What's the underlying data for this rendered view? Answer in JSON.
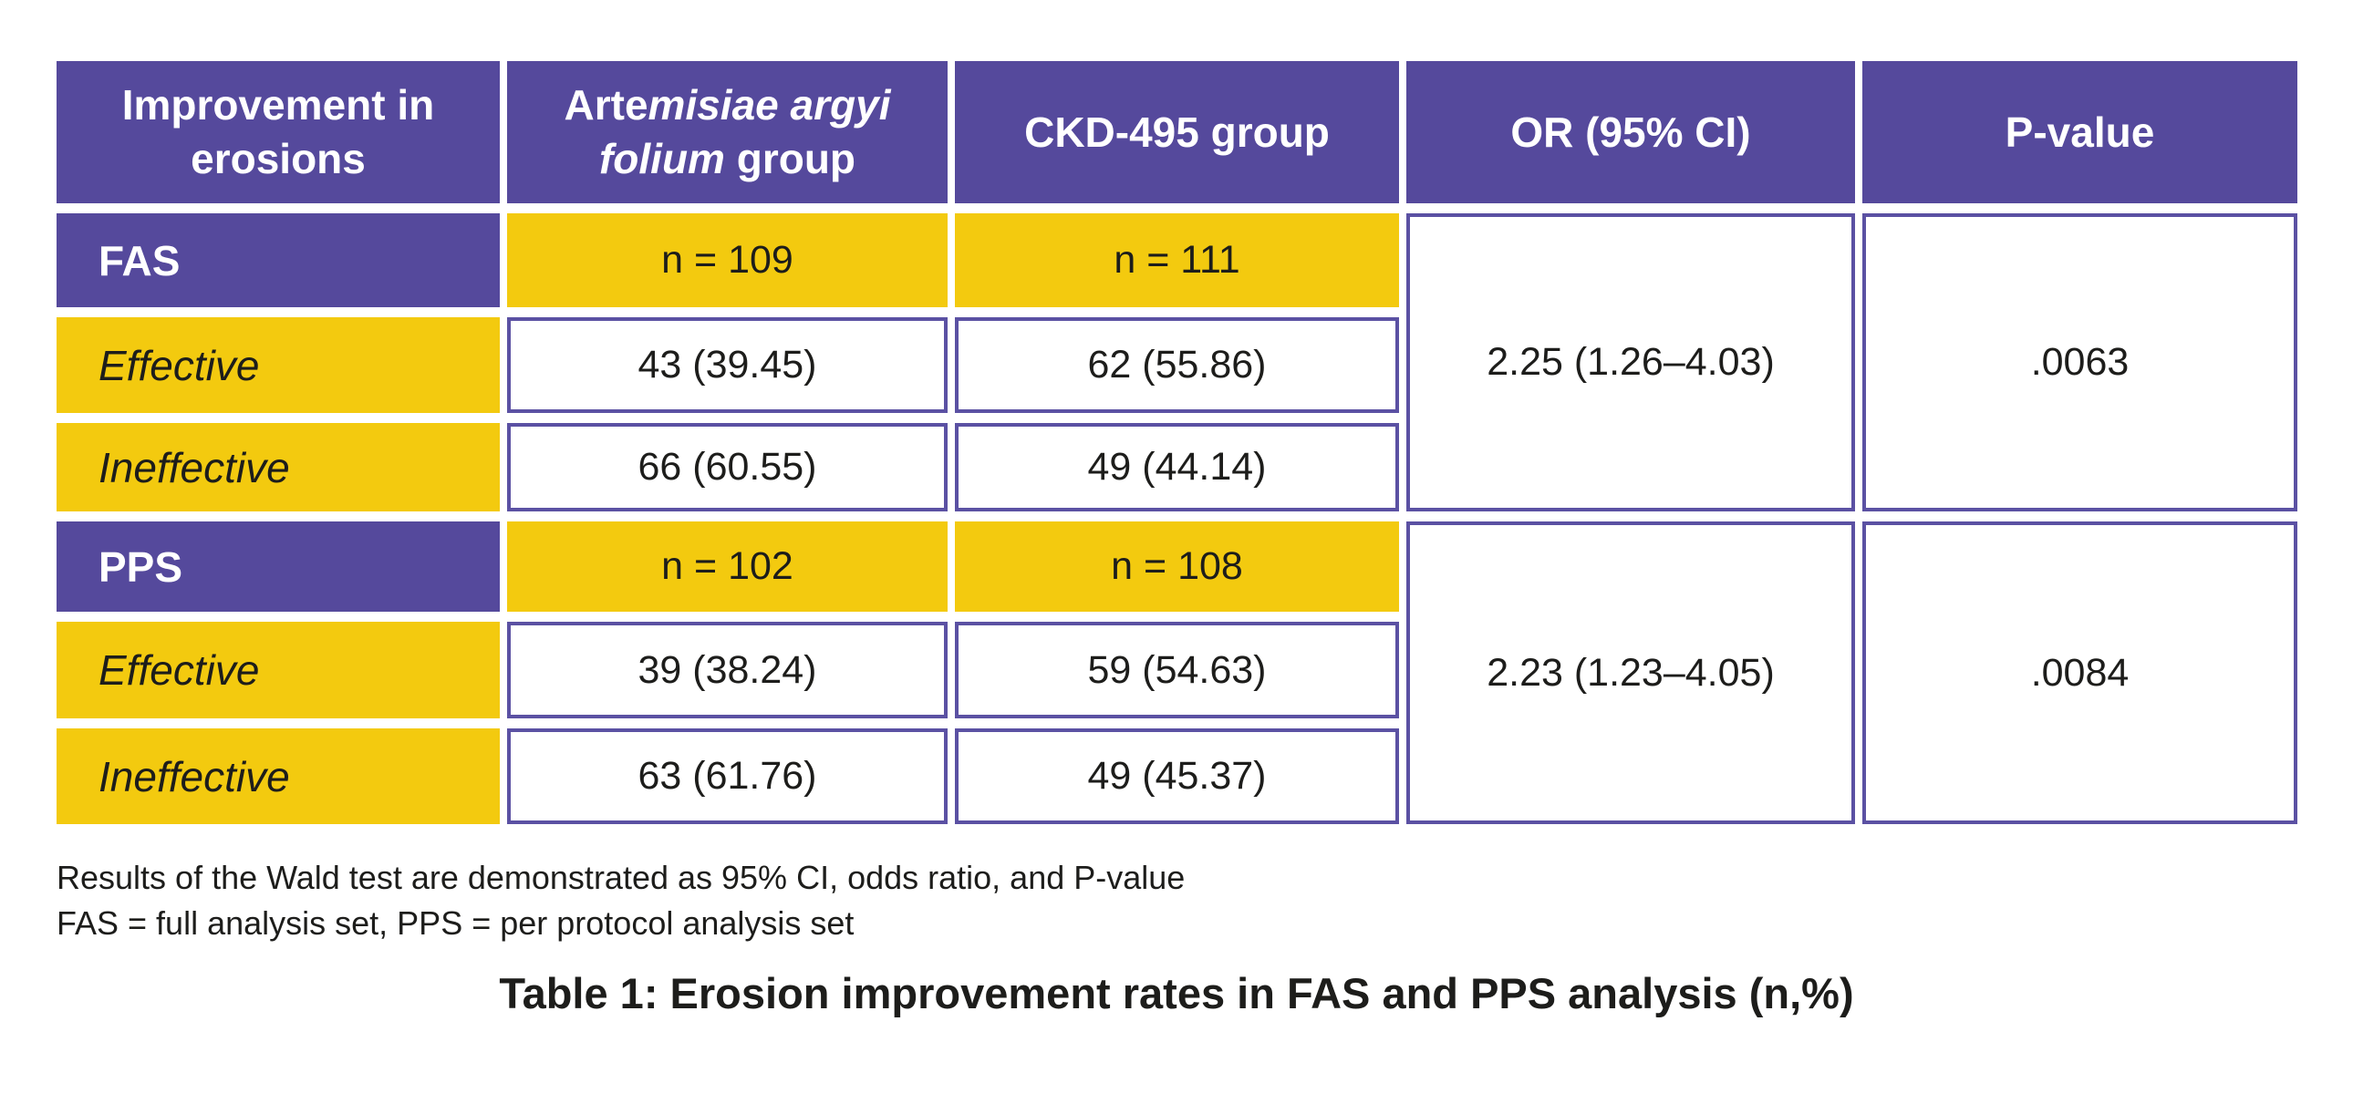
{
  "colors": {
    "header_purple": "#55499c",
    "label_yellow": "#f3ca0f",
    "cell_border_purple": "#5b51a3",
    "header_text": "#ffffff",
    "body_text": "#1d1d1b",
    "background": "#ffffff"
  },
  "table": {
    "headers": {
      "col1": "Improvement in erosions",
      "col2_pre": "Arte",
      "col2_italic": "misiae argyi folium",
      "col2_post": " group",
      "col3": "CKD-495 group",
      "col4": "OR (95% CI)",
      "col5": "P-value"
    },
    "sections": [
      {
        "name": "FAS",
        "n_group1": "n = 109",
        "n_group2": "n = 111",
        "rows": [
          {
            "label": "Effective",
            "group1": "43 (39.45)",
            "group2": "62 (55.86)"
          },
          {
            "label": "Ineffective",
            "group1": "66 (60.55)",
            "group2": "49 (44.14)"
          }
        ],
        "or_ci": "2.25 (1.26–4.03)",
        "p_value": ".0063"
      },
      {
        "name": "PPS",
        "n_group1": "n = 102",
        "n_group2": "n = 108",
        "rows": [
          {
            "label": "Effective",
            "group1": "39 (38.24)",
            "group2": "59 (54.63)"
          },
          {
            "label": "Ineffective",
            "group1": "63 (61.76)",
            "group2": "49 (45.37)"
          }
        ],
        "or_ci": "2.23 (1.23–4.05)",
        "p_value": ".0084"
      }
    ]
  },
  "notes": {
    "line1": "Results of the Wald test are demonstrated as 95% CI, odds ratio, and P-value",
    "line2": "FAS = full analysis set, PPS = per protocol analysis set"
  },
  "caption": "Table 1: Erosion improvement rates in FAS and PPS analysis (n,%)",
  "chart_data": {
    "type": "table",
    "title": "Table 1: Erosion improvement rates in FAS and PPS analysis (n,%)",
    "columns": [
      "Improvement in erosions",
      "Artemisiae argyi folium group",
      "CKD-495 group",
      "OR (95% CI)",
      "P-value"
    ],
    "rows": [
      [
        "FAS",
        "n = 109",
        "n = 111",
        "2.25 (1.26–4.03)",
        ".0063"
      ],
      [
        "Effective",
        "43 (39.45)",
        "62 (55.86)",
        "",
        ""
      ],
      [
        "Ineffective",
        "66 (60.55)",
        "49 (44.14)",
        "",
        ""
      ],
      [
        "PPS",
        "n = 102",
        "n = 108",
        "2.23 (1.23–4.05)",
        ".0084"
      ],
      [
        "Effective",
        "39 (38.24)",
        "59 (54.63)",
        "",
        ""
      ],
      [
        "Ineffective",
        "63 (61.76)",
        "49 (45.37)",
        "",
        ""
      ]
    ],
    "footnotes": [
      "Results of the Wald test are demonstrated as 95% CI, odds ratio, and P-value",
      "FAS = full analysis set, PPS = per protocol analysis set"
    ]
  }
}
